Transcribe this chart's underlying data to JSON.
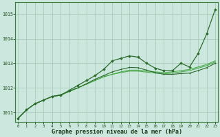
{
  "title": "Graphe pression niveau de la mer (hPa)",
  "background_color": "#cce8de",
  "grid_color": "#aaccbb",
  "line_dark": "#2d6a2d",
  "line_light": "#4aaa4a",
  "xlim": [
    -0.3,
    23.3
  ],
  "ylim": [
    1010.6,
    1015.5
  ],
  "yticks": [
    1011,
    1012,
    1013,
    1014,
    1015
  ],
  "xticks": [
    0,
    1,
    2,
    3,
    4,
    5,
    6,
    7,
    8,
    9,
    10,
    11,
    12,
    13,
    14,
    15,
    16,
    17,
    18,
    19,
    20,
    21,
    22,
    23
  ],
  "series_curved_peak": [
    1010.75,
    1011.1,
    1011.35,
    1011.5,
    1011.65,
    1011.7,
    1011.9,
    1012.1,
    1012.3,
    1012.5,
    1012.75,
    1013.1,
    1013.2,
    1013.3,
    1013.25,
    1013.0,
    1012.8,
    1012.7,
    1012.7,
    1013.0,
    1012.85,
    1013.4,
    1014.2,
    1015.2
  ],
  "series_linear1": [
    1010.75,
    1011.1,
    1011.35,
    1011.5,
    1011.65,
    1011.7,
    1011.85,
    1012.0,
    1012.15,
    1012.3,
    1012.45,
    1012.55,
    1012.65,
    1012.72,
    1012.72,
    1012.68,
    1012.65,
    1012.62,
    1012.65,
    1012.7,
    1012.75,
    1012.85,
    1012.95,
    1013.1
  ],
  "series_linear2": [
    1010.75,
    1011.1,
    1011.35,
    1011.5,
    1011.65,
    1011.7,
    1011.85,
    1012.0,
    1012.15,
    1012.3,
    1012.45,
    1012.55,
    1012.62,
    1012.68,
    1012.68,
    1012.64,
    1012.6,
    1012.57,
    1012.6,
    1012.65,
    1012.7,
    1012.8,
    1012.9,
    1013.05
  ],
  "series_straight": [
    1010.75,
    1011.1,
    1011.35,
    1011.5,
    1011.65,
    1011.72,
    1011.87,
    1012.0,
    1012.17,
    1012.35,
    1012.5,
    1012.65,
    1012.75,
    1012.83,
    1012.82,
    1012.72,
    1012.62,
    1012.55,
    1012.55,
    1012.58,
    1012.6,
    1012.7,
    1012.82,
    1013.0
  ]
}
